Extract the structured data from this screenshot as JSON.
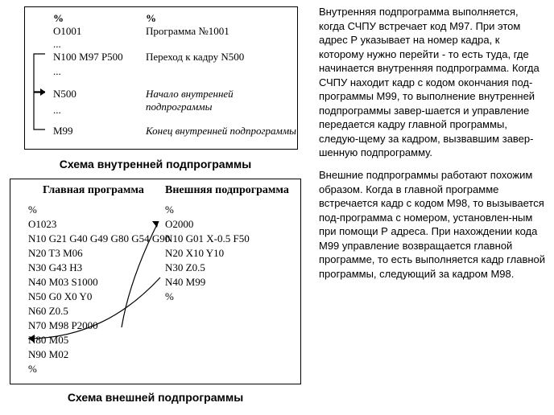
{
  "figure1": {
    "left_header": "%",
    "right_header": "%",
    "l_o": "O1001",
    "r_prog": "Программа №1001",
    "l_dots1": "...",
    "l_n100": "N100 M97 P500",
    "r_jump": "Переход к кадру  N500",
    "l_dots2": "...",
    "l_n500": "N500",
    "r_start": "Начало внутренней подпрограммы",
    "l_dots3": "...",
    "l_m99": "M99",
    "r_end": "Конец внутренней подпрограммы",
    "caption": "Схема внутренней подпрограммы"
  },
  "figure2": {
    "left_title": "Главная программа",
    "right_title": "Внешняя подпрограмма",
    "main_lines": [
      "%",
      "O1023",
      "N10 G21 G40 G49 G80 G54 G90",
      "N20 T3 M06",
      "N30 G43 H3",
      "N40 M03 S1000",
      "N50 G0 X0 Y0",
      "N60 Z0.5",
      "N70 M98 P2000",
      "N80 M05",
      "N90 M02",
      "%"
    ],
    "sub_lines": [
      "%",
      "O2000",
      "N10 G01 X-0.5 F50",
      "N20 X10 Y10",
      "N30 Z0.5",
      "N40 M99",
      "%"
    ],
    "caption": "Схема внешней подпрограммы"
  },
  "para1": "Внутренняя подпрограмма выполняется, когда СЧПУ встречает код М97. При этом адрес  Р указывает на номер кадра, к которому нужно перейти - то есть туда, где начинается внутренняя подпрограмма. Когда СЧПУ находит кадр с кодом окончания под-программы M99, то выполнение внутренней подпрограммы завер-шается и управление передается кадру главной программы, следую-щему за кадром, вызвавшим завер-шенную подпрограмму.",
  "para2": "Внешние подпрограммы работают похожим образом. Когда в главной программе встречается кадр с кодом М98, то вызывается под-программа с номером, установлен-ным при помощи Р адреса. При нахождении кода М99 управление возвращается главной программе, то есть выполняется кадр главной программы, следующий за кадром М98."
}
